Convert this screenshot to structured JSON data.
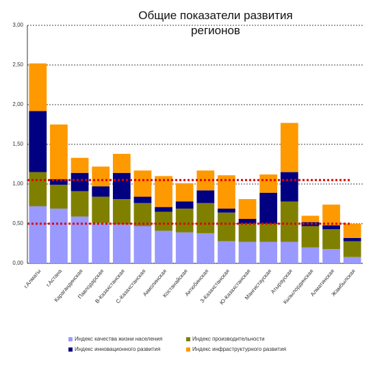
{
  "chart_data": {
    "type": "stacked_bar",
    "title": "Общие показатели развития регионов",
    "categories": [
      "г.Алматы",
      "г.Астана",
      "Карагандинская",
      "Павлодарская",
      "В-Казахстанская",
      "С-Казахстанская",
      "Акмолинская",
      "Костанайская",
      "Актюбинская",
      "З-Казахстанская",
      "Ю-Казахстанская",
      "Мангистауская",
      "Атырауская",
      "Кызылординская",
      "Алматинская",
      "Жамбылская"
    ],
    "series": [
      {
        "name": "Индекс качества жизни населения",
        "color": "#9999ff",
        "values": [
          0.72,
          0.69,
          0.59,
          0.51,
          0.49,
          0.47,
          0.41,
          0.39,
          0.38,
          0.28,
          0.27,
          0.27,
          0.27,
          0.2,
          0.18,
          0.08
        ]
      },
      {
        "name": "Индекс производительности",
        "color": "#808000",
        "values": [
          0.43,
          0.3,
          0.32,
          0.33,
          0.32,
          0.29,
          0.24,
          0.3,
          0.38,
          0.36,
          0.23,
          0.23,
          0.51,
          0.27,
          0.25,
          0.2
        ]
      },
      {
        "name": "Индекс инновационного развития",
        "color": "#000080",
        "values": [
          0.77,
          0.07,
          0.23,
          0.13,
          0.33,
          0.08,
          0.06,
          0.09,
          0.16,
          0.05,
          0.06,
          0.39,
          0.37,
          0.05,
          0.05,
          0.04
        ]
      },
      {
        "name": "Индекс инфраструктурного развития",
        "color": "#ff9900",
        "values": [
          0.6,
          0.69,
          0.19,
          0.25,
          0.24,
          0.33,
          0.39,
          0.23,
          0.25,
          0.42,
          0.25,
          0.23,
          0.62,
          0.08,
          0.26,
          0.18
        ]
      }
    ],
    "ylim": [
      0,
      3
    ],
    "yticks": [
      {
        "value": 0,
        "label": "0,00"
      },
      {
        "value": 0.5,
        "label": "0,50"
      },
      {
        "value": 1,
        "label": "1,00"
      },
      {
        "value": 1.5,
        "label": "1,50"
      },
      {
        "value": 2,
        "label": "2,00"
      },
      {
        "value": 2.5,
        "label": "2,50"
      },
      {
        "value": 3,
        "label": "3,00"
      }
    ],
    "grid": true,
    "hlines": [
      1.05,
      0.5
    ],
    "hline_color": "#e00000"
  }
}
